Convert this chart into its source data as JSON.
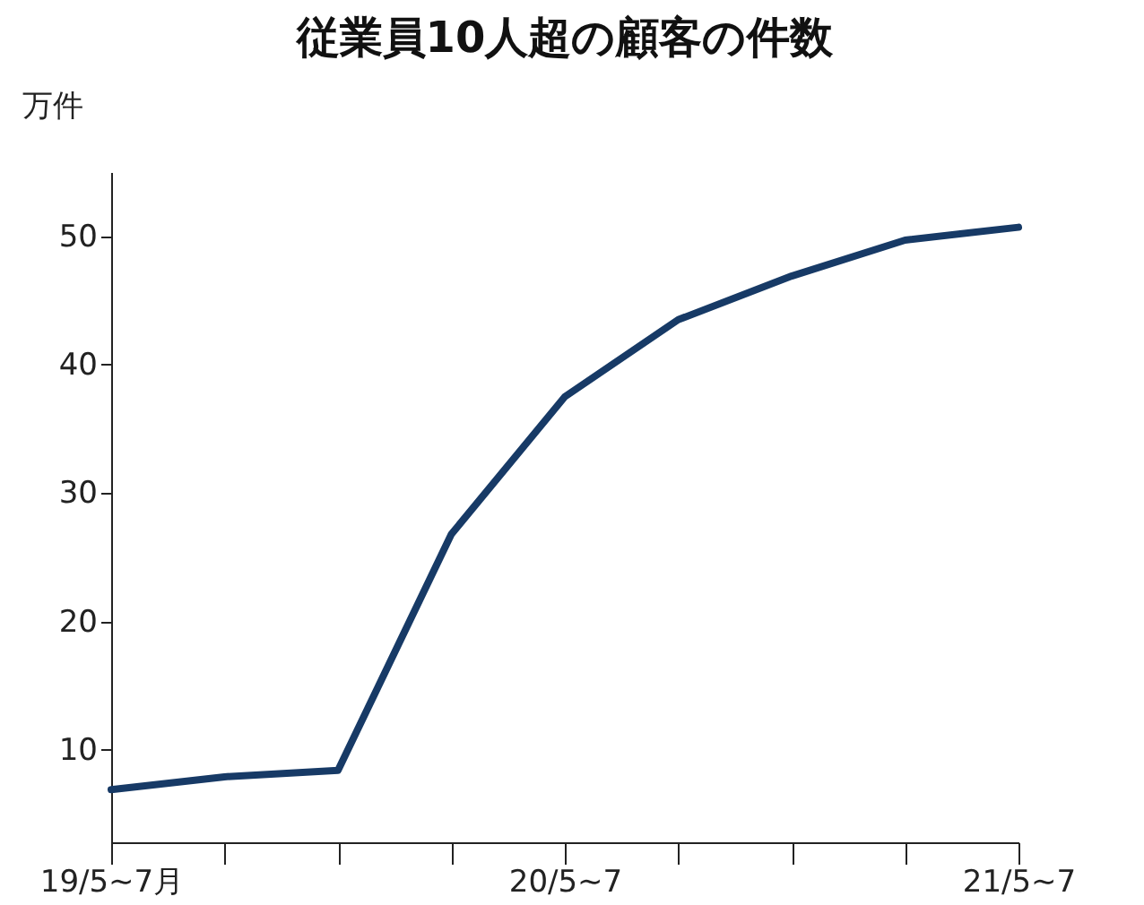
{
  "chart_data": {
    "type": "line",
    "title": "従業員10人超の顧客の件数",
    "ylabel": "万件",
    "categories": [
      "19/5~7月",
      null,
      null,
      null,
      "20/5~7",
      null,
      null,
      null,
      "21/5~7"
    ],
    "series": [
      {
        "color": "#173a66",
        "values": [
          6.9,
          7.9,
          8.4,
          26.8,
          37.5,
          43.5,
          46.9,
          49.7,
          50.7
        ]
      }
    ],
    "ylim": [
      2.8,
      55
    ],
    "yticks": [
      10,
      20,
      30,
      40,
      50
    ],
    "grid": false,
    "marker": "none",
    "line_style": "solid"
  }
}
